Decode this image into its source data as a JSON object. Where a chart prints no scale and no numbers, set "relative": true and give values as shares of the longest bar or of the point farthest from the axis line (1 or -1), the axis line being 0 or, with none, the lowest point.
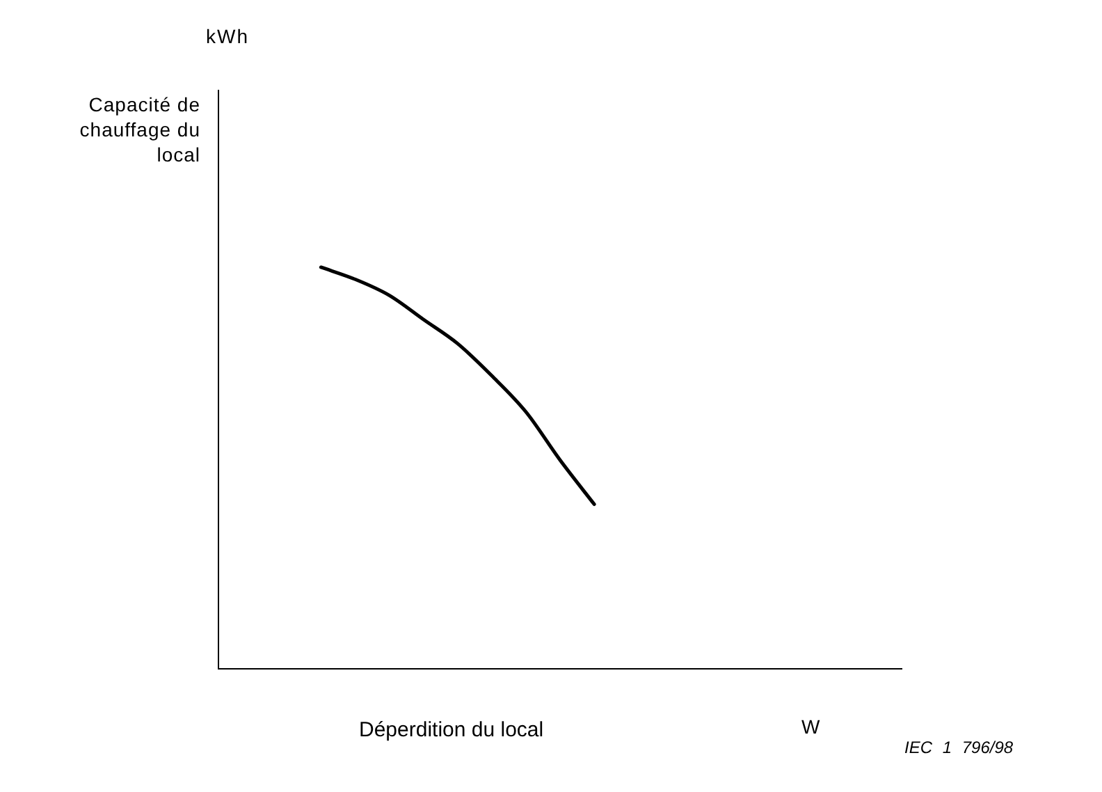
{
  "chart_data": {
    "type": "line",
    "relative": true,
    "xlabel": "Déperdition du local",
    "annotations": [
      "kWh",
      "W",
      "IEC 1 796/98",
      "Capacité de chauffage du local"
    ],
    "categories": [
      null,
      null,
      null,
      null,
      null,
      null,
      null,
      null,
      null,
      null,
      null,
      null,
      null,
      null,
      null,
      null,
      null,
      null,
      null,
      null,
      null
    ],
    "series": [
      {
        "color": "#000000",
        "values": [
          null,
          null,
          null,
          1,
          0.97,
          0.93,
          0.87,
          0.81,
          0.73,
          0.64,
          0.52,
          0.41,
          null,
          null,
          null,
          null,
          null,
          null,
          null,
          null,
          null
        ]
      }
    ],
    "grid": false,
    "legend": false,
    "marker": "none",
    "line_style": "solid"
  }
}
